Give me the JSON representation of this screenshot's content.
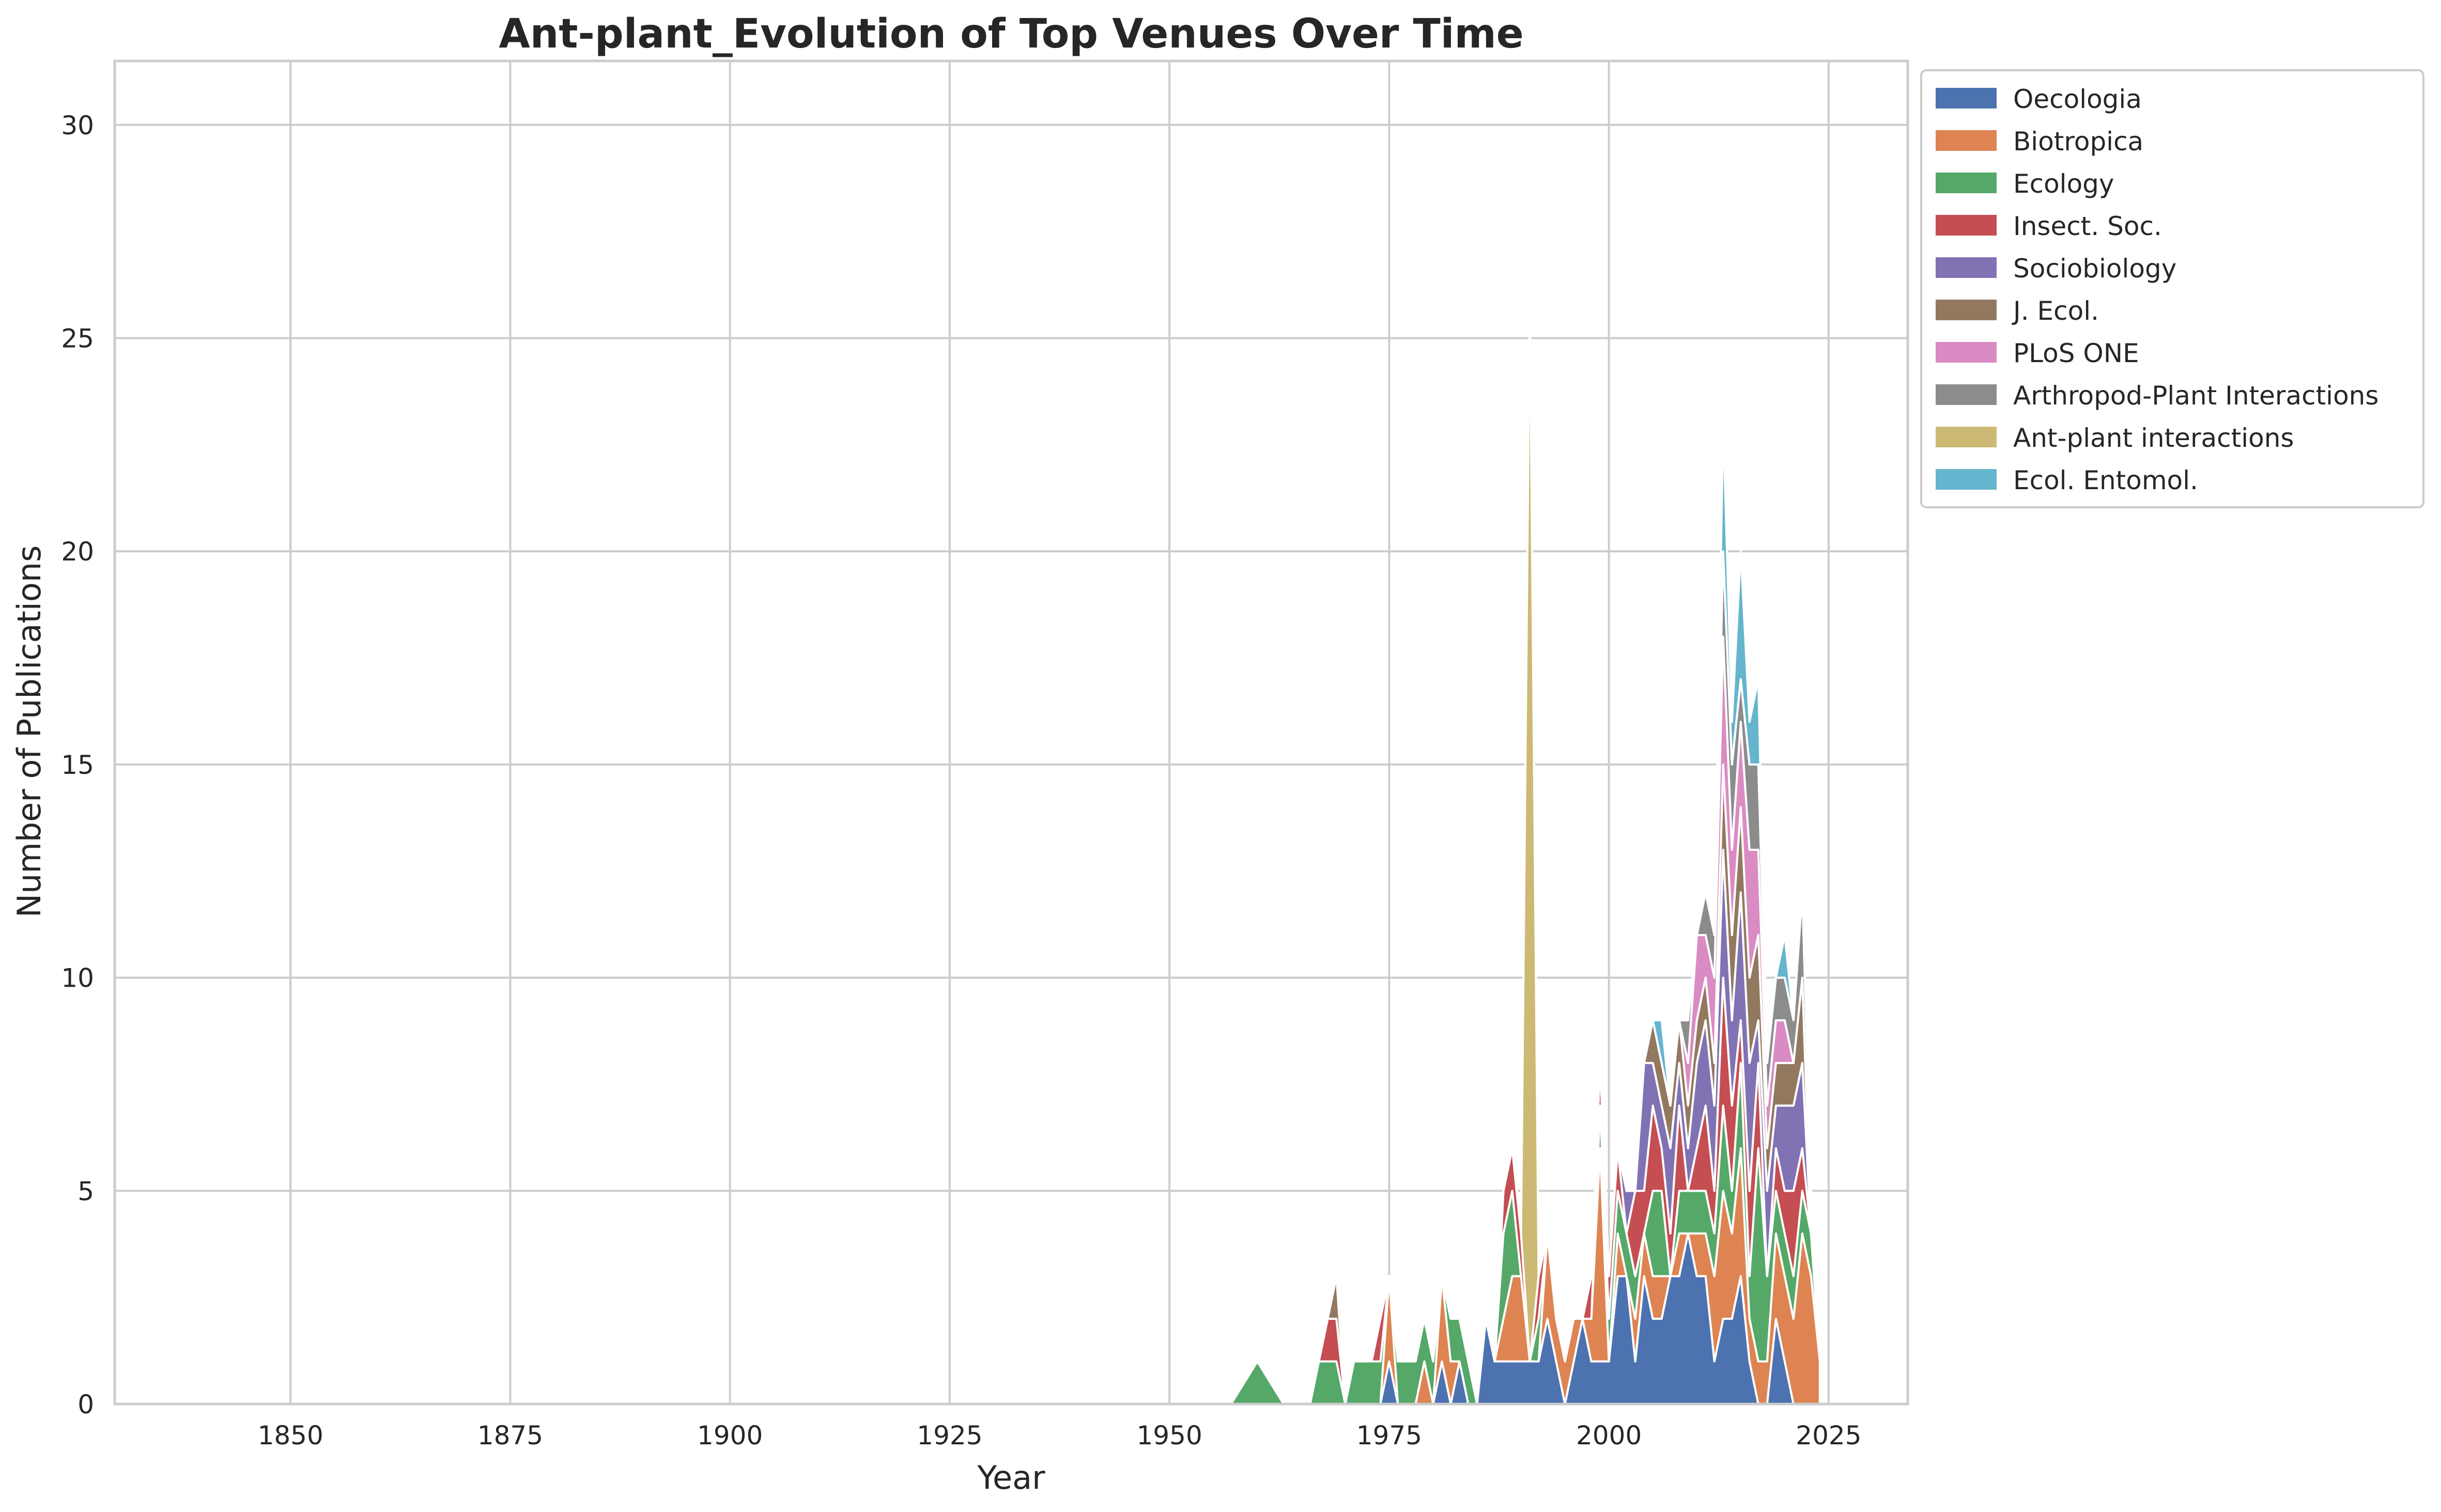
{
  "chart_data": {
    "type": "area",
    "stacked": true,
    "title": "Ant-plant_Evolution of Top Venues Over Time",
    "xlabel": "Year",
    "ylabel": "Number of Publications",
    "xlim": [
      1830,
      2034
    ],
    "ylim": [
      0,
      31.5
    ],
    "xticks": [
      1850,
      1875,
      1900,
      1925,
      1950,
      1975,
      2000,
      2025
    ],
    "yticks": [
      0,
      5,
      10,
      15,
      20,
      25,
      30
    ],
    "grid": true,
    "legend_position": "outside-top-right",
    "x": [
      1957,
      1960,
      1963,
      1966,
      1967,
      1968,
      1969,
      1970,
      1971,
      1972,
      1973,
      1974,
      1975,
      1976,
      1977,
      1978,
      1979,
      1980,
      1981,
      1982,
      1983,
      1984,
      1985,
      1986,
      1987,
      1988,
      1989,
      1990,
      1991,
      1992,
      1993,
      1994,
      1995,
      1996,
      1997,
      1998,
      1999,
      2000,
      2001,
      2002,
      2003,
      2004,
      2005,
      2006,
      2007,
      2008,
      2009,
      2010,
      2011,
      2012,
      2013,
      2014,
      2015,
      2016,
      2017,
      2018,
      2019,
      2020,
      2021,
      2022,
      2023,
      2024
    ],
    "series": [
      {
        "name": "Oecologia",
        "color": "#4c72b0",
        "values": [
          0,
          0,
          0,
          0,
          0,
          0,
          0,
          0,
          0,
          0,
          0,
          0,
          1,
          0,
          0,
          0,
          0,
          0,
          1,
          0,
          1,
          0,
          0,
          2,
          1,
          1,
          1,
          1,
          1,
          1,
          2,
          1,
          0,
          1,
          2,
          1,
          1,
          1,
          3,
          3,
          1,
          3,
          2,
          2,
          3,
          3,
          4,
          3,
          3,
          1,
          2,
          2,
          3,
          1,
          0,
          0,
          2,
          1,
          0,
          0,
          0,
          0
        ]
      },
      {
        "name": "Biotropica",
        "color": "#dd8452",
        "values": [
          0,
          0,
          0,
          0,
          0,
          0,
          0,
          0,
          0,
          0,
          0,
          0,
          2,
          0,
          0,
          0,
          1,
          0,
          2,
          1,
          0,
          0,
          0,
          0,
          0,
          1,
          2,
          2,
          0,
          0,
          2,
          1,
          1,
          1,
          0,
          1,
          5,
          0,
          1,
          0,
          1,
          1,
          1,
          1,
          0,
          1,
          0,
          1,
          1,
          2,
          3,
          2,
          3,
          1,
          1,
          1,
          2,
          2,
          2,
          4,
          3,
          1
        ]
      },
      {
        "name": "Ecology",
        "color": "#55a868",
        "values": [
          0,
          1,
          0,
          0,
          1,
          1,
          1,
          0,
          1,
          1,
          1,
          1,
          0,
          1,
          1,
          1,
          1,
          1,
          0,
          1,
          1,
          1,
          0,
          0,
          0,
          2,
          2,
          0,
          0,
          1,
          0,
          0,
          0,
          0,
          0,
          0,
          1,
          1,
          1,
          1,
          1,
          0,
          2,
          2,
          0,
          1,
          1,
          1,
          1,
          1,
          2,
          1,
          2,
          1,
          5,
          2,
          1,
          1,
          1,
          1,
          1,
          0
        ]
      },
      {
        "name": "Insect. Soc.",
        "color": "#c44e52",
        "values": [
          0,
          0,
          0,
          0,
          0,
          1,
          1,
          0,
          0,
          0,
          0,
          1,
          0,
          0,
          0,
          0,
          0,
          0,
          0,
          0,
          0,
          0,
          0,
          0,
          0,
          1,
          1,
          1,
          0,
          1,
          0,
          0,
          0,
          0,
          0,
          1,
          1,
          1,
          1,
          0,
          2,
          1,
          2,
          1,
          1,
          2,
          0,
          1,
          2,
          1,
          3,
          2,
          1,
          2,
          2,
          0,
          1,
          1,
          2,
          1,
          0,
          0
        ]
      },
      {
        "name": "Sociobiology",
        "color": "#8172b3",
        "values": [
          0,
          0,
          0,
          0,
          0,
          0,
          0,
          0,
          0,
          0,
          0,
          0,
          0,
          0,
          0,
          0,
          0,
          0,
          0,
          0,
          0,
          0,
          0,
          0,
          0,
          0,
          0,
          0,
          0,
          0,
          0,
          0,
          0,
          0,
          0,
          0,
          0,
          0,
          0,
          1,
          0,
          3,
          1,
          1,
          2,
          1,
          1,
          2,
          2,
          2,
          3,
          2,
          3,
          3,
          1,
          2,
          1,
          2,
          2,
          2,
          0,
          0
        ]
      },
      {
        "name": "J. Ecol.",
        "color": "#937860",
        "values": [
          0,
          0,
          0,
          0,
          0,
          0,
          1,
          0,
          0,
          0,
          0,
          0,
          0,
          0,
          0,
          0,
          0,
          0,
          0,
          0,
          0,
          0,
          0,
          0,
          0,
          0,
          0,
          0,
          0,
          0,
          0,
          0,
          0,
          0,
          0,
          0,
          0,
          0,
          0,
          0,
          0,
          0,
          1,
          1,
          1,
          1,
          1,
          1,
          1,
          1,
          2,
          2,
          2,
          2,
          2,
          1,
          1,
          1,
          1,
          2,
          0,
          0
        ]
      },
      {
        "name": "PLoS ONE",
        "color": "#da8bc3",
        "values": [
          0,
          0,
          0,
          0,
          0,
          0,
          0,
          0,
          0,
          0,
          0,
          0,
          0,
          0,
          0,
          0,
          0,
          0,
          0,
          0,
          0,
          0,
          0,
          0,
          0,
          0,
          0,
          0,
          0,
          0,
          0,
          0,
          0,
          0,
          0,
          0,
          0,
          0,
          0,
          0,
          0,
          0,
          0,
          0,
          0,
          0,
          1,
          2,
          1,
          2,
          3,
          2,
          2,
          3,
          2,
          1,
          1,
          1,
          0,
          0,
          0,
          0
        ]
      },
      {
        "name": "Arthropod-Plant Interactions",
        "color": "#8c8c8c",
        "values": [
          0,
          0,
          0,
          0,
          0,
          0,
          0,
          0,
          0,
          0,
          0,
          0,
          0,
          0,
          0,
          0,
          0,
          0,
          0,
          0,
          0,
          0,
          0,
          0,
          0,
          0,
          0,
          0,
          0,
          0,
          0,
          0,
          0,
          0,
          0,
          0,
          0,
          0,
          0,
          0,
          0,
          0,
          0,
          0,
          0,
          0,
          1,
          0,
          1,
          1,
          2,
          2,
          1,
          2,
          2,
          1,
          1,
          1,
          1,
          2,
          1,
          0
        ]
      },
      {
        "name": "Ant-plant interactions",
        "color": "#ccb974",
        "values": [
          0,
          0,
          0,
          0,
          0,
          0,
          0,
          0,
          0,
          0,
          0,
          0,
          0,
          0,
          0,
          0,
          0,
          0,
          0,
          0,
          0,
          0,
          0,
          0,
          0,
          0,
          0,
          0,
          25,
          0,
          0,
          0,
          0,
          0,
          0,
          0,
          0,
          0,
          0,
          0,
          0,
          0,
          0,
          0,
          0,
          0,
          0,
          0,
          0,
          0,
          0,
          0,
          0,
          0,
          0,
          0,
          0,
          0,
          0,
          0,
          0,
          0
        ]
      },
      {
        "name": "Ecol. Entomol.",
        "color": "#64b5cd",
        "values": [
          0,
          0,
          0,
          0,
          0,
          0,
          0,
          0,
          0,
          0,
          0,
          0,
          0,
          0,
          0,
          0,
          0,
          0,
          0,
          0,
          0,
          0,
          0,
          0,
          0,
          0,
          0,
          0,
          0,
          0,
          0,
          0,
          0,
          0,
          0,
          0,
          0,
          0,
          0,
          0,
          0,
          0,
          0,
          1,
          0,
          0,
          0,
          0,
          0,
          0,
          3,
          1,
          3,
          1,
          2,
          0,
          0,
          1,
          0,
          0,
          0,
          0
        ]
      }
    ]
  }
}
